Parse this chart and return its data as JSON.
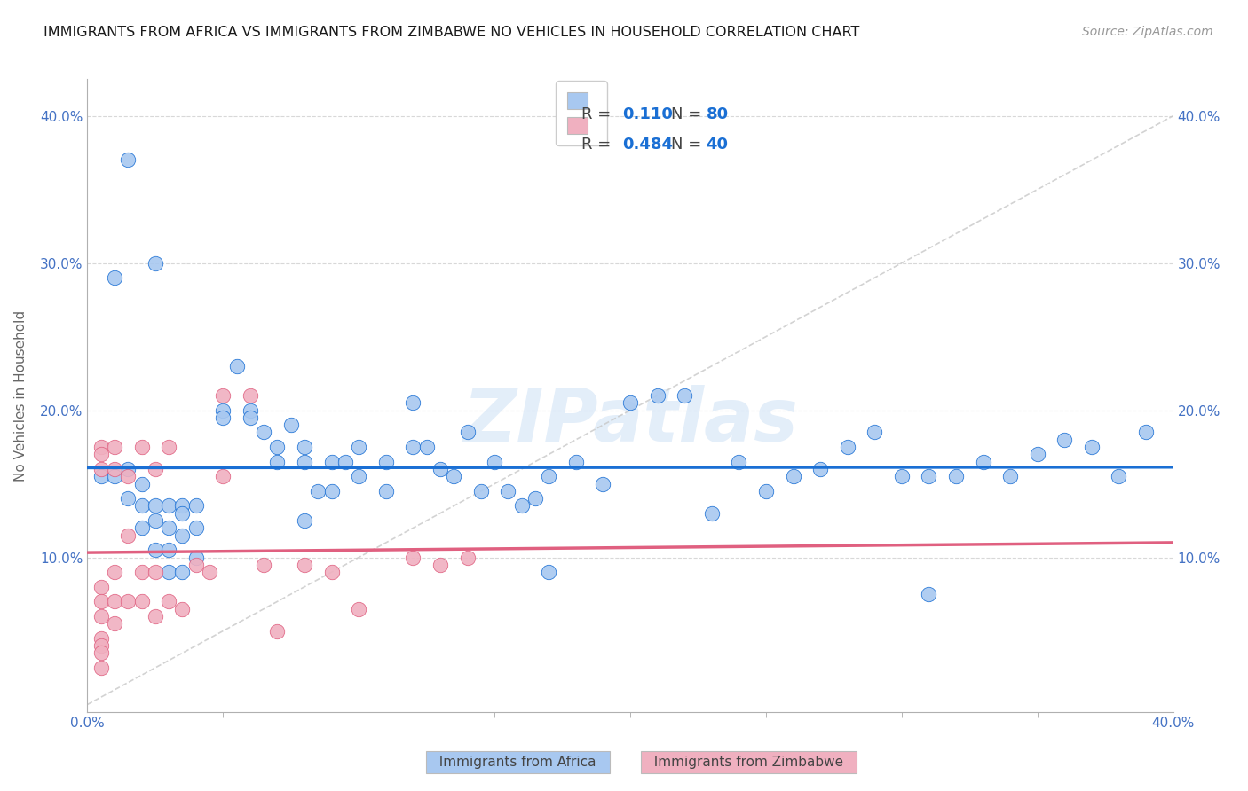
{
  "title": "IMMIGRANTS FROM AFRICA VS IMMIGRANTS FROM ZIMBABWE NO VEHICLES IN HOUSEHOLD CORRELATION CHART",
  "source": "Source: ZipAtlas.com",
  "ylabel": "No Vehicles in Household",
  "xlim": [
    0.0,
    0.4
  ],
  "ylim": [
    -0.005,
    0.425
  ],
  "color_africa": "#a8c8f0",
  "color_zimbabwe": "#f0b0c0",
  "color_africa_edge": "#1a6fd4",
  "color_zimbabwe_edge": "#e06080",
  "color_africa_line": "#1a6fd4",
  "color_zimbabwe_line": "#e06080",
  "color_diagonal": "#c8c8c8",
  "watermark": "ZIPatlas",
  "r_africa": "0.110",
  "n_africa": "80",
  "r_zimbabwe": "0.484",
  "n_zimbabwe": "40",
  "africa_x": [
    0.01,
    0.005,
    0.01,
    0.015,
    0.015,
    0.02,
    0.02,
    0.02,
    0.025,
    0.025,
    0.025,
    0.03,
    0.03,
    0.03,
    0.03,
    0.035,
    0.035,
    0.035,
    0.035,
    0.04,
    0.04,
    0.04,
    0.05,
    0.05,
    0.055,
    0.06,
    0.06,
    0.065,
    0.07,
    0.07,
    0.075,
    0.08,
    0.08,
    0.08,
    0.085,
    0.09,
    0.09,
    0.095,
    0.1,
    0.1,
    0.11,
    0.11,
    0.12,
    0.12,
    0.125,
    0.13,
    0.135,
    0.14,
    0.145,
    0.15,
    0.155,
    0.16,
    0.165,
    0.17,
    0.17,
    0.18,
    0.19,
    0.2,
    0.21,
    0.22,
    0.23,
    0.24,
    0.25,
    0.26,
    0.27,
    0.28,
    0.29,
    0.3,
    0.31,
    0.31,
    0.32,
    0.33,
    0.34,
    0.35,
    0.36,
    0.37,
    0.38,
    0.39,
    0.015,
    0.025
  ],
  "africa_y": [
    0.29,
    0.155,
    0.155,
    0.16,
    0.14,
    0.15,
    0.135,
    0.12,
    0.135,
    0.125,
    0.105,
    0.135,
    0.12,
    0.105,
    0.09,
    0.135,
    0.13,
    0.115,
    0.09,
    0.135,
    0.12,
    0.1,
    0.2,
    0.195,
    0.23,
    0.2,
    0.195,
    0.185,
    0.175,
    0.165,
    0.19,
    0.175,
    0.165,
    0.125,
    0.145,
    0.165,
    0.145,
    0.165,
    0.175,
    0.155,
    0.145,
    0.165,
    0.175,
    0.205,
    0.175,
    0.16,
    0.155,
    0.185,
    0.145,
    0.165,
    0.145,
    0.135,
    0.14,
    0.155,
    0.09,
    0.165,
    0.15,
    0.205,
    0.21,
    0.21,
    0.13,
    0.165,
    0.145,
    0.155,
    0.16,
    0.175,
    0.185,
    0.155,
    0.155,
    0.075,
    0.155,
    0.165,
    0.155,
    0.17,
    0.18,
    0.175,
    0.155,
    0.185,
    0.37,
    0.3
  ],
  "zimb_x": [
    0.005,
    0.005,
    0.005,
    0.005,
    0.005,
    0.005,
    0.005,
    0.005,
    0.005,
    0.01,
    0.01,
    0.01,
    0.01,
    0.01,
    0.015,
    0.015,
    0.015,
    0.02,
    0.02,
    0.02,
    0.025,
    0.025,
    0.025,
    0.03,
    0.03,
    0.035,
    0.04,
    0.045,
    0.05,
    0.05,
    0.06,
    0.065,
    0.07,
    0.08,
    0.09,
    0.1,
    0.12,
    0.13,
    0.14,
    0.005
  ],
  "zimb_y": [
    0.175,
    0.16,
    0.08,
    0.07,
    0.06,
    0.045,
    0.04,
    0.035,
    0.025,
    0.175,
    0.16,
    0.09,
    0.07,
    0.055,
    0.155,
    0.115,
    0.07,
    0.175,
    0.09,
    0.07,
    0.16,
    0.09,
    0.06,
    0.175,
    0.07,
    0.065,
    0.095,
    0.09,
    0.21,
    0.155,
    0.21,
    0.095,
    0.05,
    0.095,
    0.09,
    0.065,
    0.1,
    0.095,
    0.1,
    0.17
  ]
}
